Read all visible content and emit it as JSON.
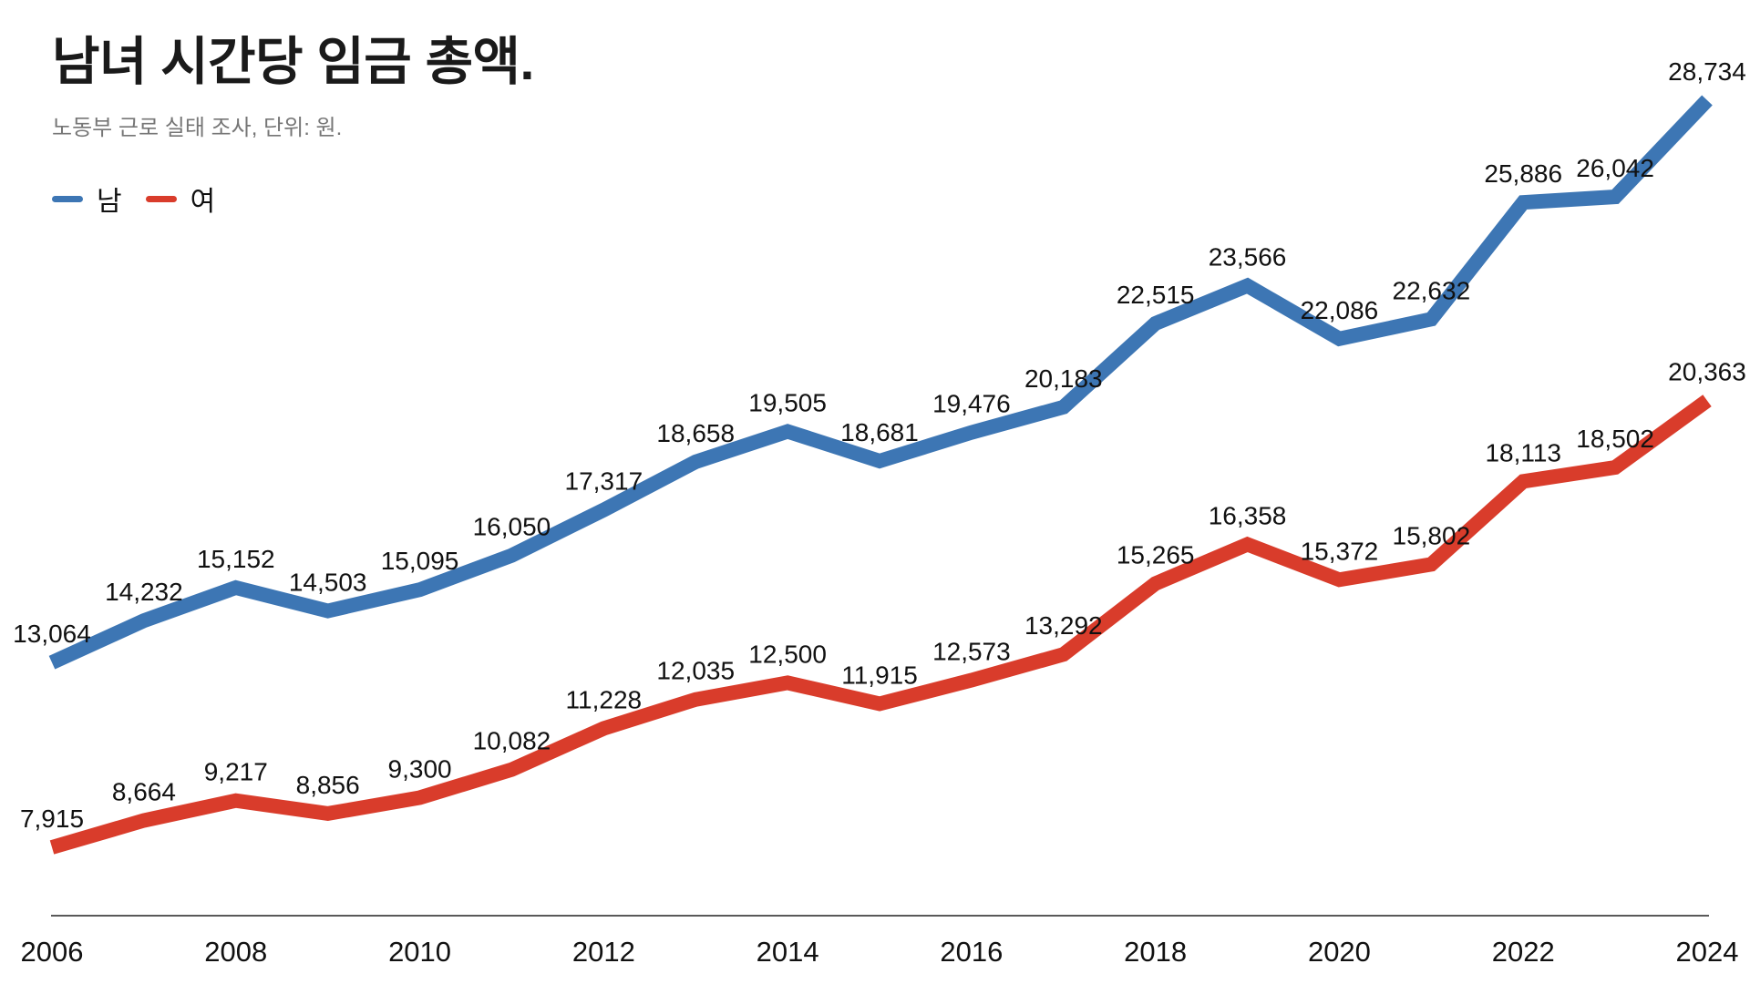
{
  "header": {
    "title": "남녀 시간당 임금 총액.",
    "subtitle": "노동부 근로 실태 조사, 단위: 원."
  },
  "legend": [
    {
      "label": "남",
      "color": "#3d76b4"
    },
    {
      "label": "여",
      "color": "#d93c2b"
    }
  ],
  "colors": {
    "accent_male": "#3d76b4",
    "accent_female": "#d93c2b",
    "data_label": "#111111",
    "axis_line": "#222222",
    "tick_label": "#111111",
    "subtitle": "#767676",
    "background": "#ffffff"
  },
  "chart_data": {
    "type": "line",
    "title": "남녀 시간당 임금 총액.",
    "subtitle": "노동부 근로 실태 조사, 단위: 원.",
    "xlabel": "",
    "ylabel": "",
    "grid": false,
    "legend_position": "top-left",
    "x": [
      2006,
      2007,
      2008,
      2009,
      2010,
      2011,
      2012,
      2013,
      2014,
      2015,
      2016,
      2017,
      2018,
      2019,
      2020,
      2021,
      2022,
      2023,
      2024
    ],
    "x_tick_labels": [
      "2006",
      "2008",
      "2010",
      "2012",
      "2014",
      "2016",
      "2018",
      "2020",
      "2022",
      "2024"
    ],
    "x_tick_step": 2,
    "ylim": [
      6100,
      29000
    ],
    "series": [
      {
        "name": "남",
        "color": "#3d76b4",
        "values": [
          13064,
          14232,
          15152,
          14503,
          15095,
          16050,
          17317,
          18658,
          19505,
          18681,
          19476,
          20183,
          22515,
          23566,
          22086,
          22632,
          25886,
          26042,
          28734
        ]
      },
      {
        "name": "여",
        "color": "#d93c2b",
        "values": [
          7915,
          8664,
          9217,
          8856,
          9300,
          10082,
          11228,
          12035,
          12500,
          11915,
          12573,
          13292,
          15265,
          16358,
          15372,
          15802,
          18113,
          18502,
          20363
        ]
      }
    ]
  }
}
